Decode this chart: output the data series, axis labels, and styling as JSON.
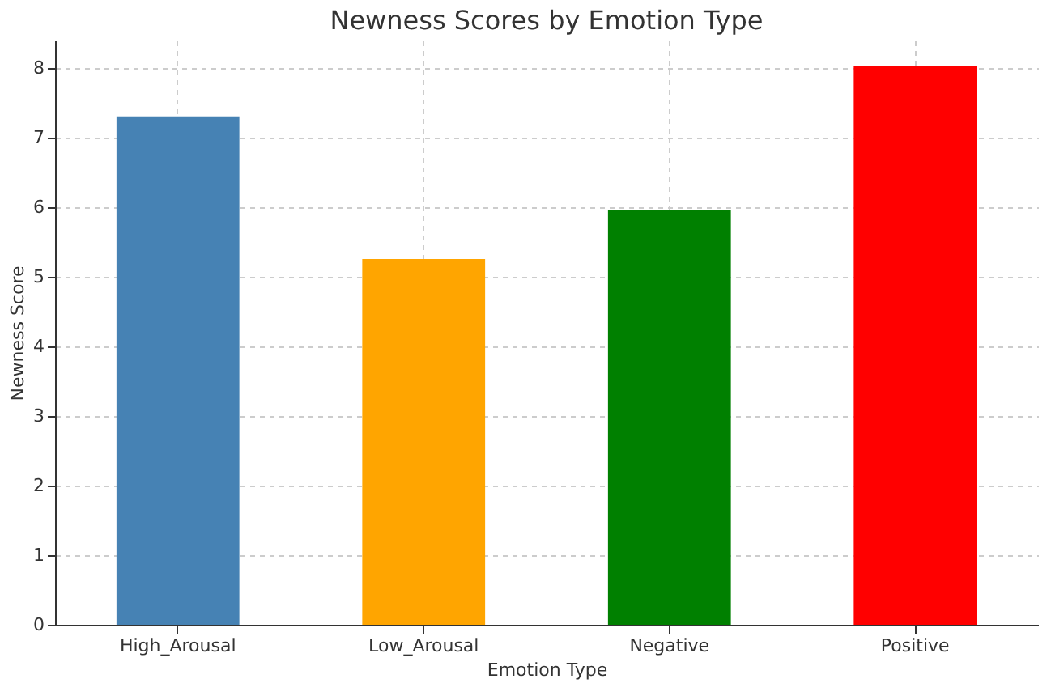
{
  "chart_data": {
    "type": "bar",
    "title": "Newness Scores by Emotion Type",
    "xlabel": "Emotion Type",
    "ylabel": "Newness Score",
    "categories": [
      "High_Arousal",
      "Low_Arousal",
      "Negative",
      "Positive"
    ],
    "values": [
      7.31,
      5.26,
      5.96,
      8.04
    ],
    "colors": [
      "#4682b4",
      "#ffa500",
      "#008000",
      "#ff0000"
    ],
    "ylim": [
      0,
      8.4
    ],
    "yticks": [
      0,
      1,
      2,
      3,
      4,
      5,
      6,
      7,
      8
    ],
    "grid": true
  }
}
